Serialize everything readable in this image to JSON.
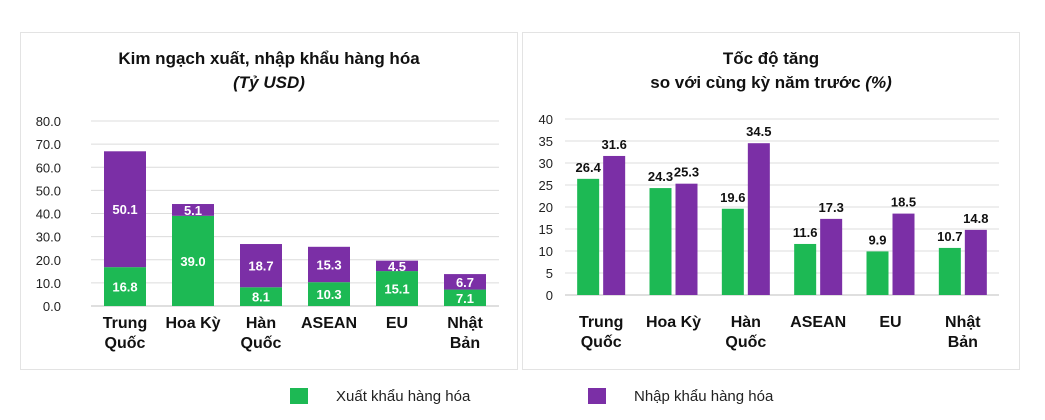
{
  "colors": {
    "export": "#1db954",
    "import": "#7b2fa6",
    "grid": "#dcdcdc",
    "axis": "#bfbfbf"
  },
  "chart_data": [
    {
      "type": "bar",
      "stacked": true,
      "title": "Kim ngạch xuất, nhập khẩu hàng hóa",
      "subtitle": "(Tỷ USD)",
      "categories": [
        [
          "Trung",
          "Quốc"
        ],
        [
          "Hoa Kỳ"
        ],
        [
          "Hàn",
          "Quốc"
        ],
        [
          "ASEAN"
        ],
        [
          "EU"
        ],
        [
          "Nhật",
          "Bản"
        ]
      ],
      "series": [
        {
          "name": "Xuất khẩu hàng hóa",
          "values": [
            16.8,
            39.0,
            8.1,
            10.3,
            15.1,
            7.1
          ]
        },
        {
          "name": "Nhập khẩu hàng hóa",
          "values": [
            50.1,
            5.1,
            18.7,
            15.3,
            4.5,
            6.7
          ]
        }
      ],
      "ylim": [
        0,
        80
      ],
      "yticks": [
        "0.0",
        "10.0",
        "20.0",
        "30.0",
        "40.0",
        "50.0",
        "60.0",
        "70.0",
        "80.0"
      ],
      "grid": true
    },
    {
      "type": "bar",
      "stacked": false,
      "title_line1": "Tốc độ tăng",
      "title_line2": "so với cùng kỳ năm trước",
      "title_unit": "(%)",
      "categories": [
        [
          "Trung",
          "Quốc"
        ],
        [
          "Hoa Kỳ"
        ],
        [
          "Hàn",
          "Quốc"
        ],
        [
          "ASEAN"
        ],
        [
          "EU"
        ],
        [
          "Nhật",
          "Bản"
        ]
      ],
      "series": [
        {
          "name": "Xuất khẩu hàng hóa",
          "values": [
            26.4,
            24.3,
            19.6,
            11.6,
            9.9,
            10.7
          ]
        },
        {
          "name": "Nhập khẩu hàng hóa",
          "values": [
            31.6,
            25.3,
            34.5,
            17.3,
            18.5,
            14.8
          ]
        }
      ],
      "ylim": [
        0,
        40
      ],
      "yticks": [
        "0",
        "5",
        "10",
        "15",
        "20",
        "25",
        "30",
        "35",
        "40"
      ],
      "grid": true
    }
  ],
  "legend": {
    "export_label": "Xuất khẩu hàng hóa",
    "import_label": "Nhập khẩu hàng hóa",
    "placement": "bottom"
  }
}
